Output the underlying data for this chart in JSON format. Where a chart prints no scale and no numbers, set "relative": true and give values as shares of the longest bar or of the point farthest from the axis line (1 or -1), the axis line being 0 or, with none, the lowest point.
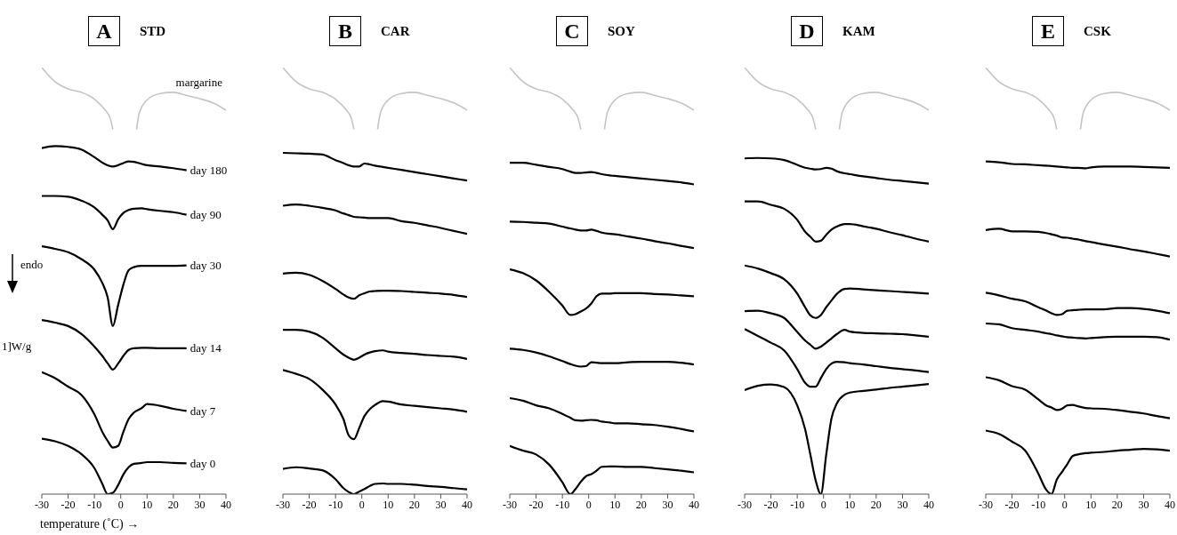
{
  "chart_data": [
    {
      "type": "line",
      "title": "STD",
      "annotations": [
        "A",
        "1]W/g"
      ],
      "ylabel": "endo",
      "xlabel": "temperature (˚C) →",
      "relative": true,
      "xlim": [
        -30,
        40
      ],
      "xticks": [
        -30,
        -20,
        -10,
        0,
        10,
        20,
        30,
        40
      ],
      "x": [
        -30,
        -25,
        -20,
        -15,
        -10,
        -7,
        -5,
        -3,
        -1,
        1,
        3,
        5,
        8,
        10,
        15,
        20,
        25
      ],
      "series": [
        {
          "name": "margarine",
          "color": "#c4c4c4",
          "x": [
            -30,
            -25,
            -20,
            -15,
            -10,
            -6,
            -4,
            -3,
            1,
            6,
            7,
            10,
            15,
            20,
            25,
            30,
            35,
            40
          ],
          "values": [
            1,
            0.967,
            0.95,
            0.942,
            0.926,
            0.901,
            0.881,
            0.855,
            null,
            0.855,
            0.892,
            0.924,
            0.939,
            0.942,
            0.935,
            0.927,
            0.917,
            0.9
          ]
        },
        {
          "name": "day 180",
          "color": "#000000",
          "values": [
            0.811,
            0.816,
            0.814,
            0.808,
            0.79,
            0.777,
            0.771,
            0.768,
            0.771,
            0.776,
            0.78,
            0.779,
            0.774,
            0.771,
            0.768,
            0.764,
            0.759
          ]
        },
        {
          "name": "day 90",
          "color": "#000000",
          "values": [
            0.699,
            0.699,
            0.697,
            0.688,
            0.672,
            0.655,
            0.642,
            0.621,
            0.644,
            0.659,
            0.666,
            0.669,
            0.67,
            0.668,
            0.664,
            0.661,
            0.655
          ]
        },
        {
          "name": "day 30",
          "color": "#000000",
          "values": [
            0.581,
            0.575,
            0.567,
            0.551,
            0.526,
            0.495,
            0.462,
            0.394,
            0.443,
            0.491,
            0.525,
            0.532,
            0.535,
            0.535,
            0.535,
            0.535,
            0.536
          ]
        },
        {
          "name": "day 14",
          "color": "#000000",
          "values": [
            0.408,
            0.402,
            0.394,
            0.376,
            0.346,
            0.324,
            0.307,
            0.292,
            0.306,
            0.324,
            0.338,
            0.342,
            0.343,
            0.343,
            0.342,
            0.342,
            0.342
          ]
        },
        {
          "name": "day 7",
          "color": "#000000",
          "values": [
            0.286,
            0.272,
            0.252,
            0.233,
            0.187,
            0.146,
            0.125,
            0.109,
            0.113,
            0.146,
            0.176,
            0.191,
            0.202,
            0.211,
            0.207,
            0.2,
            0.195
          ]
        },
        {
          "name": "day 0",
          "color": "#000000",
          "values": [
            0.13,
            0.124,
            0.113,
            0.094,
            0.061,
            0.024,
            0,
            0.003,
            0.021,
            0.046,
            0.063,
            0.071,
            0.073,
            0.075,
            0.075,
            0.073,
            0.072
          ]
        }
      ]
    },
    {
      "type": "line",
      "title": "CAR",
      "annotations": [
        "B"
      ],
      "relative": true,
      "xlim": [
        -30,
        40
      ],
      "xticks": [
        -30,
        -20,
        -10,
        0,
        10,
        20,
        30,
        40
      ],
      "x": [
        -30,
        -25,
        -20,
        -15,
        -10,
        -7,
        -5,
        -3,
        -1,
        1,
        3,
        5,
        8,
        10,
        15,
        20,
        25,
        30,
        35,
        40
      ],
      "series": [
        {
          "color": "#c4c4c4",
          "x": [
            -30,
            -25,
            -20,
            -15,
            -10,
            -6,
            -4,
            -3,
            1,
            6,
            7,
            10,
            15,
            20,
            25,
            30,
            35,
            40
          ],
          "values": [
            1,
            0.967,
            0.95,
            0.942,
            0.926,
            0.901,
            0.881,
            0.855,
            null,
            0.855,
            0.892,
            0.924,
            0.939,
            0.942,
            0.935,
            0.927,
            0.917,
            0.9
          ]
        },
        {
          "color": "#000000",
          "values": [
            0.8,
            0.799,
            0.798,
            0.796,
            0.783,
            0.776,
            0.771,
            0.768,
            0.768,
            0.775,
            0.773,
            0.77,
            0.767,
            0.765,
            0.76,
            0.755,
            0.75,
            0.745,
            0.74,
            0.735
          ]
        },
        {
          "color": "#000000",
          "values": [
            0.676,
            0.679,
            0.676,
            0.671,
            0.665,
            0.658,
            0.654,
            0.65,
            0.649,
            0.648,
            0.647,
            0.647,
            0.647,
            0.647,
            0.64,
            0.636,
            0.63,
            0.624,
            0.617,
            0.61
          ]
        },
        {
          "color": "#000000",
          "values": [
            0.517,
            0.519,
            0.514,
            0.5,
            0.481,
            0.468,
            0.461,
            0.458,
            0.466,
            0.471,
            0.475,
            0.476,
            0.477,
            0.477,
            0.476,
            0.474,
            0.472,
            0.47,
            0.467,
            0.462
          ]
        },
        {
          "color": "#000000",
          "values": [
            0.385,
            0.385,
            0.381,
            0.367,
            0.342,
            0.327,
            0.32,
            0.315,
            0.32,
            0.327,
            0.332,
            0.335,
            0.337,
            0.334,
            0.331,
            0.329,
            0.326,
            0.324,
            0.322,
            0.317
          ]
        },
        {
          "color": "#000000",
          "values": [
            0.291,
            0.282,
            0.27,
            0.245,
            0.21,
            0.176,
            0.138,
            0.129,
            0.155,
            0.183,
            0.199,
            0.209,
            0.218,
            0.217,
            0.21,
            0.207,
            0.204,
            0.201,
            0.198,
            0.193
          ]
        },
        {
          "color": "#000000",
          "values": [
            0.059,
            0.063,
            0.06,
            0.056,
            0.035,
            0.014,
            0.005,
            0,
            0.006,
            0.012,
            0.019,
            0.024,
            0.025,
            0.024,
            0.024,
            0.022,
            0.019,
            0.017,
            0.014,
            0.011
          ]
        }
      ]
    },
    {
      "type": "line",
      "title": "SOY",
      "annotations": [
        "C"
      ],
      "relative": true,
      "xlim": [
        -30,
        40
      ],
      "xticks": [
        -30,
        -20,
        -10,
        0,
        10,
        20,
        30,
        40
      ],
      "x": [
        -30,
        -25,
        -20,
        -15,
        -10,
        -7,
        -5,
        -3,
        -1,
        1,
        3,
        5,
        8,
        10,
        15,
        20,
        25,
        30,
        35,
        40
      ],
      "series": [
        {
          "color": "#c4c4c4",
          "x": [
            -30,
            -25,
            -20,
            -15,
            -10,
            -6,
            -4,
            -3,
            1,
            6,
            7,
            10,
            15,
            20,
            25,
            30,
            35,
            40
          ],
          "values": [
            1,
            0.967,
            0.95,
            0.942,
            0.926,
            0.901,
            0.881,
            0.855,
            null,
            0.855,
            0.892,
            0.924,
            0.939,
            0.942,
            0.935,
            0.927,
            0.917,
            0.9
          ]
        },
        {
          "color": "#000000",
          "values": [
            0.777,
            0.777,
            0.772,
            0.767,
            0.762,
            0.756,
            0.753,
            0.753,
            0.754,
            0.755,
            0.753,
            0.75,
            0.747,
            0.746,
            0.743,
            0.74,
            0.737,
            0.734,
            0.731,
            0.726
          ]
        },
        {
          "color": "#000000",
          "values": [
            0.639,
            0.638,
            0.636,
            0.634,
            0.627,
            0.623,
            0.62,
            0.618,
            0.618,
            0.62,
            0.617,
            0.613,
            0.61,
            0.609,
            0.604,
            0.599,
            0.593,
            0.588,
            0.582,
            0.577
          ]
        },
        {
          "color": "#000000",
          "values": [
            0.527,
            0.518,
            0.501,
            0.474,
            0.442,
            0.42,
            0.422,
            0.428,
            0.435,
            0.447,
            0.464,
            0.47,
            0.47,
            0.471,
            0.471,
            0.471,
            0.469,
            0.468,
            0.466,
            0.464
          ]
        },
        {
          "color": "#000000",
          "values": [
            0.341,
            0.338,
            0.332,
            0.323,
            0.312,
            0.305,
            0.301,
            0.299,
            0.3,
            0.309,
            0.308,
            0.307,
            0.307,
            0.307,
            0.309,
            0.31,
            0.31,
            0.31,
            0.308,
            0.304
          ]
        },
        {
          "color": "#000000",
          "values": [
            0.225,
            0.219,
            0.208,
            0.201,
            0.188,
            0.179,
            0.173,
            0.172,
            0.173,
            0.174,
            0.173,
            0.17,
            0.168,
            0.166,
            0.166,
            0.164,
            0.162,
            0.158,
            0.153,
            0.147
          ]
        },
        {
          "color": "#000000",
          "values": [
            0.113,
            0.102,
            0.093,
            0.069,
            0.028,
            0,
            0.012,
            0.029,
            0.042,
            0.047,
            0.055,
            0.064,
            0.065,
            0.065,
            0.064,
            0.064,
            0.061,
            0.058,
            0.055,
            0.051
          ]
        }
      ]
    },
    {
      "type": "line",
      "title": "KAM",
      "annotations": [
        "D"
      ],
      "relative": true,
      "xlim": [
        -30,
        40
      ],
      "xticks": [
        -30,
        -20,
        -10,
        0,
        10,
        20,
        30,
        40
      ],
      "x": [
        -30,
        -25,
        -20,
        -15,
        -10,
        -7,
        -5,
        -3,
        -1,
        1,
        3,
        5,
        8,
        10,
        15,
        20,
        25,
        30,
        35,
        40
      ],
      "series": [
        {
          "color": "#c4c4c4",
          "x": [
            -30,
            -25,
            -20,
            -15,
            -10,
            -6,
            -4,
            -3,
            1,
            6,
            7,
            10,
            15,
            20,
            25,
            30,
            35,
            40
          ],
          "values": [
            1,
            0.967,
            0.95,
            0.942,
            0.926,
            0.901,
            0.881,
            0.855,
            null,
            0.855,
            0.892,
            0.924,
            0.939,
            0.942,
            0.935,
            0.927,
            0.917,
            0.9
          ]
        },
        {
          "color": "#000000",
          "values": [
            0.787,
            0.788,
            0.787,
            0.783,
            0.772,
            0.765,
            0.763,
            0.761,
            0.762,
            0.765,
            0.763,
            0.757,
            0.752,
            0.75,
            0.745,
            0.741,
            0.737,
            0.734,
            0.731,
            0.728
          ]
        },
        {
          "color": "#000000",
          "values": [
            0.686,
            0.686,
            0.678,
            0.669,
            0.643,
            0.615,
            0.603,
            0.592,
            0.594,
            0.608,
            0.62,
            0.627,
            0.633,
            0.633,
            0.628,
            0.622,
            0.614,
            0.607,
            0.599,
            0.592
          ]
        },
        {
          "color": "#000000",
          "values": [
            0.536,
            0.529,
            0.518,
            0.504,
            0.47,
            0.438,
            0.419,
            0.413,
            0.42,
            0.438,
            0.454,
            0.469,
            0.481,
            0.482,
            0.48,
            0.478,
            0.476,
            0.474,
            0.472,
            0.47
          ]
        },
        {
          "color": "#000000",
          "values": [
            0.429,
            0.43,
            0.424,
            0.413,
            0.38,
            0.36,
            0.35,
            0.341,
            0.346,
            0.355,
            0.365,
            0.375,
            0.385,
            0.381,
            0.378,
            0.377,
            0.376,
            0.375,
            0.372,
            0.369
          ]
        },
        {
          "color": "#000000",
          "values": [
            0.387,
            0.371,
            0.355,
            0.337,
            0.293,
            0.261,
            0.252,
            0.252,
            0.272,
            0.293,
            0.306,
            0.31,
            0.309,
            0.307,
            0.304,
            0.3,
            0.296,
            0.293,
            0.29,
            0.286
          ]
        },
        {
          "color": "#000000",
          "values": [
            0.244,
            0.254,
            0.257,
            0.251,
            0.208,
            0.152,
            0.092,
            0.032,
            0,
            0.092,
            0.177,
            0.212,
            0.233,
            0.238,
            0.242,
            0.245,
            0.249,
            0.252,
            0.255,
            0.258
          ]
        }
      ]
    },
    {
      "type": "line",
      "title": "CSK",
      "annotations": [
        "E"
      ],
      "relative": true,
      "xlim": [
        -30,
        40
      ],
      "xticks": [
        -30,
        -20,
        -10,
        0,
        10,
        20,
        30,
        40
      ],
      "x": [
        -30,
        -25,
        -20,
        -15,
        -10,
        -7,
        -5,
        -3,
        -1,
        1,
        3,
        5,
        8,
        10,
        15,
        20,
        25,
        30,
        35,
        40
      ],
      "series": [
        {
          "color": "#c4c4c4",
          "x": [
            -30,
            -25,
            -20,
            -15,
            -10,
            -6,
            -4,
            -3,
            1,
            6,
            7,
            10,
            15,
            20,
            25,
            30,
            35,
            40
          ],
          "values": [
            1,
            0.967,
            0.95,
            0.942,
            0.926,
            0.901,
            0.881,
            0.855,
            null,
            0.855,
            0.892,
            0.924,
            0.939,
            0.942,
            0.935,
            0.927,
            0.917,
            0.9
          ]
        },
        {
          "color": "#000000",
          "values": [
            0.78,
            0.778,
            0.774,
            0.773,
            0.771,
            0.77,
            0.769,
            0.768,
            0.767,
            0.766,
            0.765,
            0.765,
            0.764,
            0.766,
            0.768,
            0.768,
            0.768,
            0.767,
            0.766,
            0.765
          ]
        },
        {
          "color": "#000000",
          "values": [
            0.619,
            0.622,
            0.616,
            0.616,
            0.615,
            0.612,
            0.609,
            0.606,
            0.602,
            0.601,
            0.599,
            0.597,
            0.593,
            0.591,
            0.585,
            0.58,
            0.574,
            0.569,
            0.563,
            0.557
          ]
        },
        {
          "color": "#000000",
          "values": [
            0.472,
            0.466,
            0.458,
            0.452,
            0.438,
            0.43,
            0.424,
            0.42,
            0.422,
            0.43,
            0.431,
            0.432,
            0.433,
            0.433,
            0.433,
            0.436,
            0.436,
            0.434,
            0.43,
            0.424
          ]
        },
        {
          "color": "#000000",
          "values": [
            0.4,
            0.398,
            0.389,
            0.385,
            0.381,
            0.377,
            0.375,
            0.372,
            0.37,
            0.368,
            0.367,
            0.366,
            0.365,
            0.366,
            0.368,
            0.369,
            0.369,
            0.369,
            0.368,
            0.362
          ]
        },
        {
          "color": "#000000",
          "values": [
            0.274,
            0.267,
            0.253,
            0.245,
            0.222,
            0.208,
            0.203,
            0.197,
            0.2,
            0.208,
            0.209,
            0.206,
            0.202,
            0.201,
            0.2,
            0.197,
            0.193,
            0.189,
            0.183,
            0.178
          ]
        },
        {
          "color": "#000000",
          "values": [
            0.149,
            0.141,
            0.123,
            0.102,
            0.048,
            0.01,
            0,
            0.034,
            0.052,
            0.07,
            0.089,
            0.093,
            0.096,
            0.097,
            0.099,
            0.102,
            0.104,
            0.106,
            0.105,
            0.102
          ]
        }
      ]
    }
  ]
}
